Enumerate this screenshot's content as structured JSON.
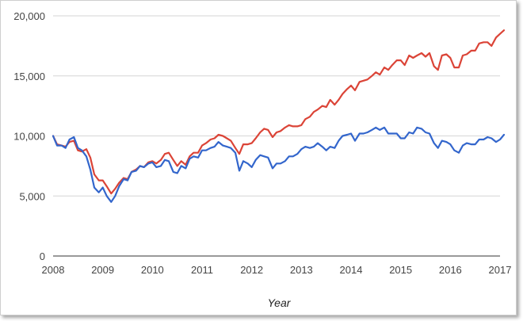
{
  "chart_data": {
    "type": "line",
    "title": "",
    "xlabel": "Year",
    "ylabel": "",
    "xlim": [
      2008,
      2017
    ],
    "ylim": [
      0,
      20000
    ],
    "grid": true,
    "x_ticks": [
      "2008",
      "2009",
      "2010",
      "2011",
      "2012",
      "2013",
      "2014",
      "2015",
      "2016",
      "2017"
    ],
    "y_ticks": [
      "0",
      "5,000",
      "10,000",
      "15,000",
      "20,000"
    ],
    "series": [
      {
        "color": "#db4437",
        "points": [
          [
            2008.0,
            10000
          ],
          [
            2008.08,
            9300
          ],
          [
            2008.17,
            9200
          ],
          [
            2008.25,
            9100
          ],
          [
            2008.33,
            9500
          ],
          [
            2008.42,
            9600
          ],
          [
            2008.5,
            8800
          ],
          [
            2008.58,
            8700
          ],
          [
            2008.67,
            8900
          ],
          [
            2008.75,
            8200
          ],
          [
            2008.83,
            6800
          ],
          [
            2008.92,
            6300
          ],
          [
            2009.0,
            6300
          ],
          [
            2009.08,
            5800
          ],
          [
            2009.17,
            5200
          ],
          [
            2009.25,
            5600
          ],
          [
            2009.33,
            6100
          ],
          [
            2009.42,
            6500
          ],
          [
            2009.5,
            6400
          ],
          [
            2009.58,
            7000
          ],
          [
            2009.67,
            7200
          ],
          [
            2009.75,
            7500
          ],
          [
            2009.83,
            7400
          ],
          [
            2009.92,
            7800
          ],
          [
            2010.0,
            7900
          ],
          [
            2010.08,
            7700
          ],
          [
            2010.17,
            8000
          ],
          [
            2010.25,
            8500
          ],
          [
            2010.33,
            8600
          ],
          [
            2010.42,
            8000
          ],
          [
            2010.5,
            7500
          ],
          [
            2010.58,
            7900
          ],
          [
            2010.67,
            7600
          ],
          [
            2010.75,
            8300
          ],
          [
            2010.83,
            8600
          ],
          [
            2010.92,
            8600
          ],
          [
            2011.0,
            9200
          ],
          [
            2011.08,
            9400
          ],
          [
            2011.17,
            9700
          ],
          [
            2011.25,
            9800
          ],
          [
            2011.33,
            10100
          ],
          [
            2011.42,
            10000
          ],
          [
            2011.5,
            9800
          ],
          [
            2011.58,
            9600
          ],
          [
            2011.67,
            9000
          ],
          [
            2011.75,
            8500
          ],
          [
            2011.83,
            9300
          ],
          [
            2011.92,
            9300
          ],
          [
            2012.0,
            9400
          ],
          [
            2012.08,
            9800
          ],
          [
            2012.17,
            10300
          ],
          [
            2012.25,
            10600
          ],
          [
            2012.33,
            10500
          ],
          [
            2012.42,
            9900
          ],
          [
            2012.5,
            10300
          ],
          [
            2012.58,
            10400
          ],
          [
            2012.67,
            10700
          ],
          [
            2012.75,
            10900
          ],
          [
            2012.83,
            10800
          ],
          [
            2012.92,
            10800
          ],
          [
            2013.0,
            10900
          ],
          [
            2013.08,
            11400
          ],
          [
            2013.17,
            11600
          ],
          [
            2013.25,
            12000
          ],
          [
            2013.33,
            12200
          ],
          [
            2013.42,
            12500
          ],
          [
            2013.5,
            12400
          ],
          [
            2013.58,
            13000
          ],
          [
            2013.67,
            12600
          ],
          [
            2013.75,
            13000
          ],
          [
            2013.83,
            13500
          ],
          [
            2013.92,
            13900
          ],
          [
            2014.0,
            14200
          ],
          [
            2014.08,
            13800
          ],
          [
            2014.17,
            14500
          ],
          [
            2014.25,
            14600
          ],
          [
            2014.33,
            14700
          ],
          [
            2014.42,
            15000
          ],
          [
            2014.5,
            15300
          ],
          [
            2014.58,
            15100
          ],
          [
            2014.67,
            15700
          ],
          [
            2014.75,
            15500
          ],
          [
            2014.83,
            15900
          ],
          [
            2014.92,
            16300
          ],
          [
            2015.0,
            16300
          ],
          [
            2015.08,
            15900
          ],
          [
            2015.17,
            16700
          ],
          [
            2015.25,
            16500
          ],
          [
            2015.33,
            16700
          ],
          [
            2015.42,
            16900
          ],
          [
            2015.5,
            16600
          ],
          [
            2015.58,
            16900
          ],
          [
            2015.67,
            15800
          ],
          [
            2015.75,
            15500
          ],
          [
            2015.83,
            16700
          ],
          [
            2015.92,
            16800
          ],
          [
            2016.0,
            16500
          ],
          [
            2016.08,
            15700
          ],
          [
            2016.17,
            15700
          ],
          [
            2016.25,
            16700
          ],
          [
            2016.33,
            16800
          ],
          [
            2016.42,
            17100
          ],
          [
            2016.5,
            17100
          ],
          [
            2016.58,
            17700
          ],
          [
            2016.67,
            17800
          ],
          [
            2016.75,
            17800
          ],
          [
            2016.83,
            17500
          ],
          [
            2016.92,
            18200
          ],
          [
            2017.0,
            18500
          ],
          [
            2017.08,
            18800
          ]
        ]
      },
      {
        "color": "#3366cc",
        "points": [
          [
            2008.0,
            10000
          ],
          [
            2008.08,
            9200
          ],
          [
            2008.17,
            9200
          ],
          [
            2008.25,
            9000
          ],
          [
            2008.33,
            9700
          ],
          [
            2008.42,
            9900
          ],
          [
            2008.5,
            9000
          ],
          [
            2008.58,
            8800
          ],
          [
            2008.67,
            8300
          ],
          [
            2008.75,
            7200
          ],
          [
            2008.83,
            5700
          ],
          [
            2008.92,
            5300
          ],
          [
            2009.0,
            5700
          ],
          [
            2009.08,
            5000
          ],
          [
            2009.17,
            4500
          ],
          [
            2009.25,
            5000
          ],
          [
            2009.33,
            5800
          ],
          [
            2009.42,
            6400
          ],
          [
            2009.5,
            6300
          ],
          [
            2009.58,
            7000
          ],
          [
            2009.67,
            7100
          ],
          [
            2009.75,
            7500
          ],
          [
            2009.83,
            7400
          ],
          [
            2009.92,
            7700
          ],
          [
            2010.0,
            7800
          ],
          [
            2010.08,
            7400
          ],
          [
            2010.17,
            7500
          ],
          [
            2010.25,
            8000
          ],
          [
            2010.33,
            7900
          ],
          [
            2010.42,
            7000
          ],
          [
            2010.5,
            6900
          ],
          [
            2010.58,
            7500
          ],
          [
            2010.67,
            7300
          ],
          [
            2010.75,
            8100
          ],
          [
            2010.83,
            8300
          ],
          [
            2010.92,
            8200
          ],
          [
            2011.0,
            8800
          ],
          [
            2011.08,
            8800
          ],
          [
            2011.17,
            9000
          ],
          [
            2011.25,
            9100
          ],
          [
            2011.33,
            9500
          ],
          [
            2011.42,
            9200
          ],
          [
            2011.5,
            9100
          ],
          [
            2011.58,
            9000
          ],
          [
            2011.67,
            8600
          ],
          [
            2011.75,
            7100
          ],
          [
            2011.83,
            7900
          ],
          [
            2011.92,
            7700
          ],
          [
            2012.0,
            7400
          ],
          [
            2012.08,
            8000
          ],
          [
            2012.17,
            8400
          ],
          [
            2012.25,
            8300
          ],
          [
            2012.33,
            8200
          ],
          [
            2012.42,
            7300
          ],
          [
            2012.5,
            7700
          ],
          [
            2012.58,
            7700
          ],
          [
            2012.67,
            7900
          ],
          [
            2012.75,
            8300
          ],
          [
            2012.83,
            8300
          ],
          [
            2012.92,
            8500
          ],
          [
            2013.0,
            8900
          ],
          [
            2013.08,
            9100
          ],
          [
            2013.17,
            9000
          ],
          [
            2013.25,
            9100
          ],
          [
            2013.33,
            9400
          ],
          [
            2013.42,
            9100
          ],
          [
            2013.5,
            8800
          ],
          [
            2013.58,
            9100
          ],
          [
            2013.67,
            9000
          ],
          [
            2013.75,
            9600
          ],
          [
            2013.83,
            10000
          ],
          [
            2013.92,
            10100
          ],
          [
            2014.0,
            10200
          ],
          [
            2014.08,
            9600
          ],
          [
            2014.17,
            10200
          ],
          [
            2014.25,
            10200
          ],
          [
            2014.33,
            10300
          ],
          [
            2014.42,
            10500
          ],
          [
            2014.5,
            10700
          ],
          [
            2014.58,
            10500
          ],
          [
            2014.67,
            10700
          ],
          [
            2014.75,
            10200
          ],
          [
            2014.83,
            10200
          ],
          [
            2014.92,
            10200
          ],
          [
            2015.0,
            9800
          ],
          [
            2015.08,
            9800
          ],
          [
            2015.17,
            10300
          ],
          [
            2015.25,
            10200
          ],
          [
            2015.33,
            10700
          ],
          [
            2015.42,
            10600
          ],
          [
            2015.5,
            10300
          ],
          [
            2015.58,
            10200
          ],
          [
            2015.67,
            9400
          ],
          [
            2015.75,
            9000
          ],
          [
            2015.83,
            9600
          ],
          [
            2015.92,
            9500
          ],
          [
            2016.0,
            9300
          ],
          [
            2016.08,
            8800
          ],
          [
            2016.17,
            8600
          ],
          [
            2016.25,
            9200
          ],
          [
            2016.33,
            9400
          ],
          [
            2016.42,
            9300
          ],
          [
            2016.5,
            9300
          ],
          [
            2016.58,
            9700
          ],
          [
            2016.67,
            9700
          ],
          [
            2016.75,
            9900
          ],
          [
            2016.83,
            9800
          ],
          [
            2016.92,
            9500
          ],
          [
            2017.0,
            9700
          ],
          [
            2017.08,
            10100
          ]
        ]
      }
    ]
  }
}
